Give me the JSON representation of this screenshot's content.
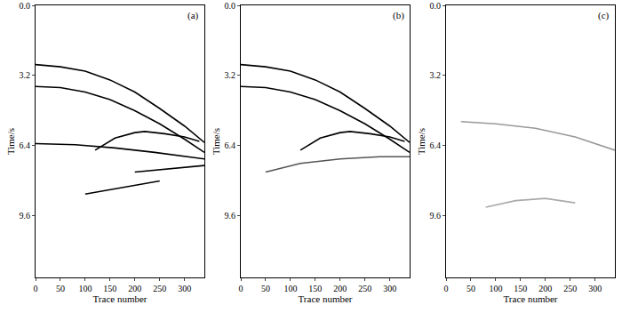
{
  "chart_data": [
    {
      "type": "line",
      "label": "(a)",
      "x_label": "Trace number",
      "y_label": "Time/s",
      "xlim": [
        0,
        340
      ],
      "ylim": [
        12.4,
        0
      ],
      "xticks": [
        0,
        50,
        100,
        150,
        200,
        250,
        300
      ],
      "yticks": [
        {
          "value": 0,
          "label": "0.0"
        },
        3.2,
        6.4,
        9.6
      ],
      "grid": false,
      "series": [
        {
          "color": "#000000",
          "x": [
            0,
            50,
            100,
            150,
            200,
            250,
            300,
            340
          ],
          "values": [
            2.7,
            2.8,
            3.0,
            3.4,
            3.95,
            4.7,
            5.5,
            6.25
          ]
        },
        {
          "color": "#000000",
          "x": [
            0,
            50,
            100,
            150,
            200,
            250,
            300,
            340
          ],
          "values": [
            3.7,
            3.75,
            3.95,
            4.3,
            4.8,
            5.4,
            6.1,
            6.7
          ]
        },
        {
          "color": "#000000",
          "x": [
            120,
            160,
            200,
            220,
            260,
            300,
            330
          ],
          "values": [
            6.6,
            6.05,
            5.8,
            5.75,
            5.85,
            6.0,
            6.2
          ]
        },
        {
          "color": "#000000",
          "x": [
            0,
            80,
            160,
            240,
            340
          ],
          "values": [
            6.3,
            6.35,
            6.5,
            6.7,
            7.0
          ]
        },
        {
          "color": "#000000",
          "x": [
            100,
            150,
            200,
            250
          ],
          "values": [
            8.6,
            8.4,
            8.2,
            8.0
          ]
        },
        {
          "color": "#000000",
          "x": [
            200,
            250,
            300,
            340
          ],
          "values": [
            7.6,
            7.5,
            7.4,
            7.3
          ]
        }
      ]
    },
    {
      "type": "line",
      "label": "(b)",
      "x_label": "Trace number",
      "y_label": "Time/s",
      "xlim": [
        0,
        340
      ],
      "ylim": [
        12.4,
        0
      ],
      "xticks": [
        0,
        50,
        100,
        150,
        200,
        250,
        300
      ],
      "yticks": [
        {
          "value": 0,
          "label": "0.0"
        },
        3.2,
        6.4,
        9.6
      ],
      "grid": false,
      "series": [
        {
          "color": "#000000",
          "x": [
            0,
            50,
            100,
            150,
            200,
            250,
            300,
            340
          ],
          "values": [
            2.7,
            2.8,
            3.0,
            3.4,
            3.95,
            4.7,
            5.5,
            6.25
          ]
        },
        {
          "color": "#000000",
          "x": [
            0,
            50,
            100,
            150,
            200,
            250,
            300,
            340
          ],
          "values": [
            3.7,
            3.75,
            3.95,
            4.3,
            4.8,
            5.4,
            6.1,
            6.7
          ]
        },
        {
          "color": "#000000",
          "x": [
            120,
            160,
            200,
            220,
            260,
            300,
            330
          ],
          "values": [
            6.6,
            6.05,
            5.8,
            5.75,
            5.85,
            6.0,
            6.2
          ]
        },
        {
          "color": "#555555",
          "x": [
            50,
            120,
            200,
            280,
            340
          ],
          "values": [
            7.6,
            7.2,
            7.0,
            6.9,
            6.9
          ]
        }
      ]
    },
    {
      "type": "line",
      "label": "(c)",
      "x_label": "Trace number",
      "y_label": "Time/s",
      "xlim": [
        0,
        340
      ],
      "ylim": [
        12.4,
        0
      ],
      "xticks": [
        0,
        50,
        100,
        150,
        200,
        250,
        300
      ],
      "yticks": [
        {
          "value": 0,
          "label": "0.0"
        },
        3.2,
        6.4,
        9.6
      ],
      "grid": false,
      "series": [
        {
          "color": "#999999",
          "x": [
            30,
            100,
            180,
            260,
            340
          ],
          "values": [
            5.3,
            5.4,
            5.6,
            6.0,
            6.6
          ]
        },
        {
          "color": "#aaaaaa",
          "x": [
            80,
            140,
            200,
            260
          ],
          "values": [
            9.2,
            8.9,
            8.8,
            9.0
          ]
        }
      ]
    }
  ]
}
